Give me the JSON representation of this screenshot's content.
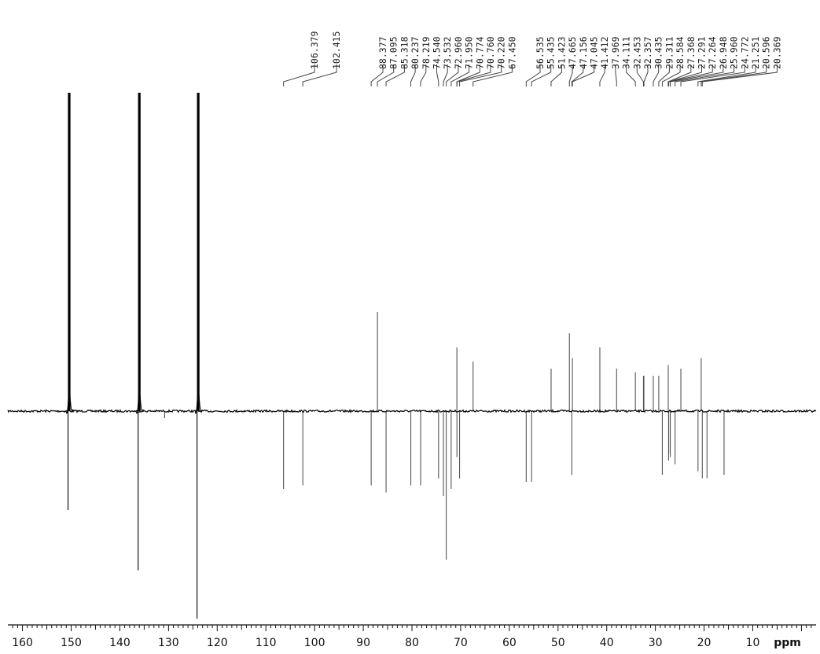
{
  "chart_data": {
    "type": "line",
    "title": "",
    "xlabel": "ppm",
    "ylabel": "",
    "xlim": [
      163,
      -3
    ],
    "x_reversed": true,
    "grid": false,
    "major_ticks": [
      160,
      150,
      140,
      130,
      120,
      110,
      100,
      90,
      80,
      70,
      60,
      50,
      40,
      30,
      20,
      10
    ],
    "major_tick_labels": [
      "160",
      "150",
      "140",
      "130",
      "120",
      "110",
      "100",
      "90",
      "80",
      "70",
      "60",
      "50",
      "40",
      "30",
      "20",
      "10"
    ],
    "minor_tick_step": 1,
    "axis_unit_label": "ppm",
    "peak_labels": [
      "106.379",
      "102.415",
      "88.377",
      "87.095",
      "85.318",
      "80.237",
      "78.219",
      "74.540",
      "73.532",
      "72.960",
      "71.950",
      "70.774",
      "70.760",
      "70.220",
      "67.450",
      "56.535",
      "55.435",
      "51.423",
      "47.665",
      "47.156",
      "47.045",
      "41.412",
      "37.969",
      "34.111",
      "32.453",
      "32.357",
      "30.435",
      "29.311",
      "28.584",
      "27.368",
      "27.291",
      "27.264",
      "26.948",
      "25.960",
      "24.772",
      "21.251",
      "20.596",
      "20.369"
    ],
    "label_groups": [
      {
        "labels": [
          "106.379"
        ],
        "peak_ppm": 106.379
      },
      {
        "labels": [
          "102.415"
        ],
        "peak_ppm": 102.415
      },
      {
        "labels": [
          "88.377",
          "87.095",
          "85.318",
          "80.237",
          "78.219",
          "74.540",
          "73.532",
          "72.960",
          "71.950",
          "70.774",
          "70.760",
          "70.220",
          "67.450"
        ],
        "peak_ppm": [
          88.377,
          87.095,
          85.318,
          80.237,
          78.219,
          74.54,
          73.532,
          72.96,
          71.95,
          70.774,
          70.76,
          70.22,
          67.45
        ]
      },
      {
        "labels": [
          "56.535",
          "55.435",
          "51.423",
          "47.665",
          "47.156",
          "47.045",
          "41.412",
          "37.969",
          "34.111",
          "32.453",
          "32.357",
          "30.435",
          "29.311",
          "28.584",
          "27.368",
          "27.291",
          "27.264",
          "26.948",
          "25.960",
          "24.772",
          "21.251",
          "20.596",
          "20.369"
        ],
        "peak_ppm": [
          56.535,
          55.435,
          51.423,
          47.665,
          47.156,
          47.045,
          41.412,
          37.969,
          34.111,
          32.453,
          32.357,
          30.435,
          29.311,
          28.584,
          27.368,
          27.291,
          27.264,
          26.948,
          25.96,
          24.772,
          21.251,
          20.596,
          20.369
        ]
      }
    ],
    "solvent_peaks": [
      {
        "ppm": 150.4,
        "upper": 1.0,
        "lower": -0.28
      },
      {
        "ppm": 136.0,
        "upper": 1.0,
        "lower": -0.45
      },
      {
        "ppm": 123.9,
        "upper": 1.0,
        "lower": -0.64
      }
    ],
    "peaks": [
      {
        "ppm": 106.379,
        "intensity": -0.22
      },
      {
        "ppm": 102.415,
        "intensity": -0.21
      },
      {
        "ppm": 88.377,
        "intensity": -0.21
      },
      {
        "ppm": 87.095,
        "intensity": 0.28
      },
      {
        "ppm": 85.318,
        "intensity": -0.23
      },
      {
        "ppm": 80.237,
        "intensity": -0.21
      },
      {
        "ppm": 78.219,
        "intensity": -0.21
      },
      {
        "ppm": 74.54,
        "intensity": -0.19
      },
      {
        "ppm": 73.532,
        "intensity": -0.24
      },
      {
        "ppm": 72.96,
        "intensity": -0.42
      },
      {
        "ppm": 71.95,
        "intensity": -0.22
      },
      {
        "ppm": 70.774,
        "intensity": 0.18
      },
      {
        "ppm": 70.76,
        "intensity": -0.13
      },
      {
        "ppm": 70.22,
        "intensity": -0.19
      },
      {
        "ppm": 67.45,
        "intensity": 0.14
      },
      {
        "ppm": 56.535,
        "intensity": -0.2
      },
      {
        "ppm": 55.435,
        "intensity": -0.2
      },
      {
        "ppm": 51.423,
        "intensity": 0.12
      },
      {
        "ppm": 47.665,
        "intensity": 0.22
      },
      {
        "ppm": 47.156,
        "intensity": -0.18
      },
      {
        "ppm": 47.045,
        "intensity": 0.15
      },
      {
        "ppm": 41.412,
        "intensity": 0.18
      },
      {
        "ppm": 37.969,
        "intensity": 0.12
      },
      {
        "ppm": 34.111,
        "intensity": 0.11
      },
      {
        "ppm": 32.453,
        "intensity": 0.1
      },
      {
        "ppm": 32.357,
        "intensity": 0.1
      },
      {
        "ppm": 30.435,
        "intensity": 0.1
      },
      {
        "ppm": 29.311,
        "intensity": 0.1
      },
      {
        "ppm": 28.584,
        "intensity": -0.18
      },
      {
        "ppm": 27.368,
        "intensity": 0.13
      },
      {
        "ppm": 27.291,
        "intensity": -0.14
      },
      {
        "ppm": 27.264,
        "intensity": -0.12
      },
      {
        "ppm": 26.948,
        "intensity": -0.13
      },
      {
        "ppm": 25.96,
        "intensity": -0.15
      },
      {
        "ppm": 24.772,
        "intensity": 0.12
      },
      {
        "ppm": 21.251,
        "intensity": -0.17
      },
      {
        "ppm": 20.596,
        "intensity": 0.15
      },
      {
        "ppm": 20.369,
        "intensity": -0.19
      },
      {
        "ppm": 19.4,
        "intensity": -0.19
      },
      {
        "ppm": 15.9,
        "intensity": -0.18
      },
      {
        "ppm": 130.8,
        "intensity": -0.02
      }
    ]
  },
  "colors": {
    "trace": "#111111",
    "peaks": "#555555",
    "solvent": "#000000",
    "axis": "#111111",
    "label_lines": "#444444"
  }
}
